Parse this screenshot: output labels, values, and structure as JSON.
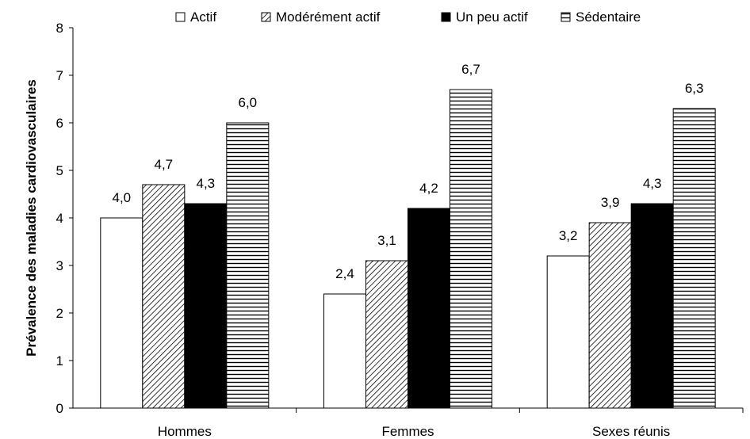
{
  "chart_data": {
    "type": "bar",
    "title": "",
    "xlabel": "",
    "ylabel": "Prévalence des maladies cardiovasculaires",
    "ylim": [
      0,
      8
    ],
    "yticks": [
      "0",
      "1",
      "2",
      "3",
      "4",
      "5",
      "6",
      "7",
      "8"
    ],
    "categories": [
      "Hommes",
      "Femmes",
      "Sexes réunis"
    ],
    "series": [
      {
        "name": "Actif",
        "values": [
          4.0,
          2.4,
          3.2
        ],
        "labels": [
          "4,0",
          "2,4",
          "3,2"
        ],
        "pattern": "white"
      },
      {
        "name": "Modérément actif",
        "values": [
          4.7,
          3.1,
          3.9
        ],
        "labels": [
          "4,7",
          "3,1",
          "3,9"
        ],
        "pattern": "diagonal"
      },
      {
        "name": "Un peu actif",
        "values": [
          4.3,
          4.2,
          4.3
        ],
        "labels": [
          "4,3",
          "4,2",
          "4,3"
        ],
        "pattern": "black"
      },
      {
        "name": "Sédentaire",
        "values": [
          6.0,
          6.7,
          6.3
        ],
        "labels": [
          "6,0",
          "6,7",
          "6,3"
        ],
        "pattern": "horizontal"
      }
    ],
    "grid": false,
    "legend_position": "top"
  },
  "colors": {
    "bar_outline": "#000000",
    "black_fill": "#000000",
    "white_fill": "#ffffff"
  }
}
